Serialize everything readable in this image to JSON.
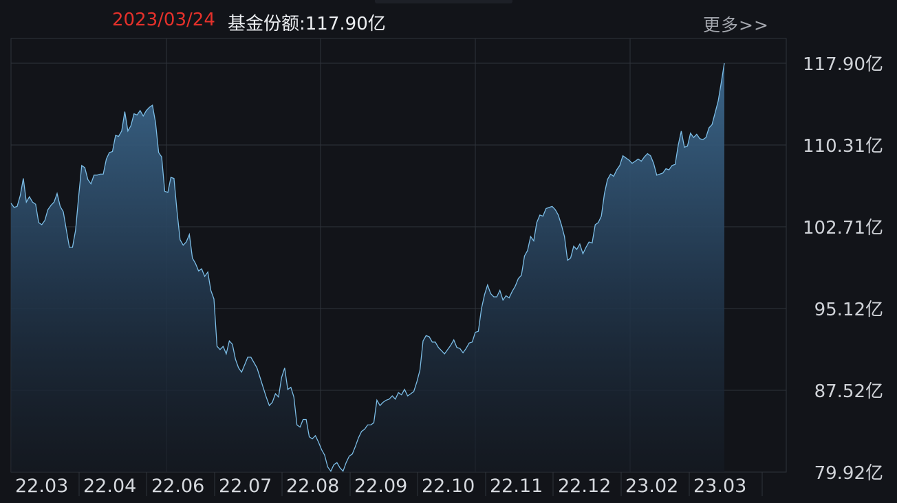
{
  "header": {
    "date": "2023/03/24",
    "value_text": "基金份额:117.90亿",
    "more_label": "更多>>"
  },
  "colors": {
    "background": "#121419",
    "line": "#7cbde6",
    "date_text": "#e5312b",
    "grid": "#2f333b"
  },
  "chart_data": {
    "type": "area",
    "title": "",
    "xlabel": "",
    "ylabel": "",
    "unit": "亿",
    "ylim": [
      79.92,
      117.9
    ],
    "y_ticks": [
      "117.90亿",
      "110.31亿",
      "102.71亿",
      "95.12亿",
      "87.52亿",
      "79.92亿"
    ],
    "x_ticks": [
      "22.03",
      "22.04",
      "22.06",
      "22.07",
      "22.08",
      "22.09",
      "22.10",
      "22.11",
      "22.12",
      "23.02",
      "23.03"
    ],
    "grid": true,
    "series": [
      {
        "values": [
          104.9,
          104.5,
          104.6,
          105.6,
          107.2,
          105.0,
          105.5,
          105.0,
          104.8,
          103.1,
          102.9,
          103.3,
          104.3,
          104.7,
          105.0,
          105.8,
          104.6,
          104.1,
          102.4,
          100.8,
          100.8,
          102.4,
          105.5,
          108.4,
          108.2,
          107.1,
          106.7,
          107.5,
          107.5,
          107.6,
          107.6,
          109.0,
          109.6,
          109.7,
          111.2,
          111.1,
          111.6,
          113.4,
          111.6,
          112.1,
          113.2,
          113.1,
          113.5,
          113.0,
          113.5,
          113.8,
          114.0,
          112.4,
          109.6,
          109.2,
          106.0,
          105.9,
          107.3,
          107.2,
          104.1,
          101.5,
          101.0,
          101.3,
          102.0,
          99.8,
          99.3,
          98.6,
          98.8,
          98.1,
          98.5,
          96.8,
          96.0,
          91.6,
          91.3,
          91.6,
          90.9,
          92.1,
          91.8,
          90.4,
          89.6,
          89.2,
          89.9,
          90.6,
          90.6,
          90.1,
          89.6,
          88.7,
          87.8,
          86.9,
          86.1,
          86.4,
          87.2,
          86.9,
          88.7,
          89.6,
          87.6,
          87.8,
          86.9,
          84.3,
          84.1,
          84.8,
          84.8,
          83.2,
          83.0,
          83.3,
          82.7,
          82.0,
          81.5,
          80.4,
          80.0,
          80.6,
          80.8,
          80.3,
          80.0,
          80.8,
          81.4,
          81.6,
          82.3,
          83.1,
          83.7,
          83.9,
          84.3,
          84.3,
          84.5,
          86.6,
          86.1,
          86.4,
          86.6,
          86.7,
          87.0,
          86.7,
          87.3,
          87.1,
          87.6,
          87.0,
          87.2,
          87.4,
          88.3,
          89.4,
          92.1,
          92.6,
          92.5,
          92.0,
          92.0,
          91.5,
          91.2,
          90.9,
          91.3,
          91.7,
          92.2,
          91.5,
          91.4,
          91.0,
          91.4,
          91.9,
          92.0,
          92.9,
          93.0,
          95.1,
          96.4,
          97.3,
          96.5,
          96.2,
          96.2,
          96.8,
          95.9,
          96.3,
          96.1,
          96.7,
          97.2,
          97.9,
          98.2,
          100.0,
          100.5,
          101.8,
          101.4,
          103.1,
          103.8,
          103.7,
          104.4,
          104.5,
          104.6,
          104.3,
          103.8,
          102.9,
          101.8,
          99.6,
          99.8,
          100.9,
          100.6,
          101.1,
          100.2,
          100.8,
          101.3,
          101.2,
          102.9,
          103.1,
          103.7,
          105.8,
          107.1,
          107.6,
          107.4,
          108.0,
          108.4,
          109.3,
          109.1,
          108.9,
          108.6,
          108.8,
          109.0,
          108.8,
          109.2,
          109.5,
          109.3,
          108.6,
          107.5,
          107.6,
          107.7,
          108.1,
          108.0,
          108.4,
          108.5,
          110.3,
          111.6,
          110.1,
          110.2,
          111.4,
          111.0,
          111.3,
          110.9,
          110.8,
          111.0,
          111.9,
          112.2,
          113.3,
          114.4,
          116.1,
          117.9
        ]
      }
    ]
  }
}
